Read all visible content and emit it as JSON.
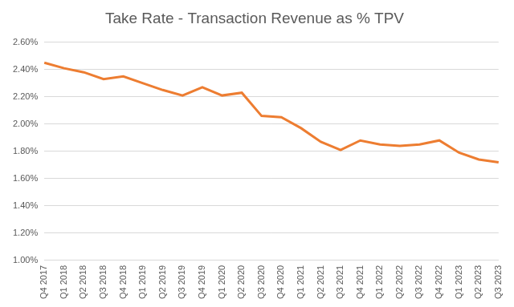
{
  "chart_data": {
    "type": "line",
    "title": "Take Rate - Transaction Revenue as % TPV",
    "categories": [
      "Q4 2017",
      "Q1 2018",
      "Q2 2018",
      "Q3 2018",
      "Q4 2018",
      "Q1 2019",
      "Q2 2019",
      "Q3 2019",
      "Q4 2019",
      "Q1 2020",
      "Q2 2020",
      "Q3 2020",
      "Q4 2020",
      "Q1 2021",
      "Q2 2021",
      "Q3 2021",
      "Q4 2021",
      "Q1 2022",
      "Q2 2022",
      "Q3 2022",
      "Q4 2022",
      "Q1 2023",
      "Q2 2023",
      "Q3 2023"
    ],
    "values": [
      2.45,
      2.41,
      2.38,
      2.33,
      2.35,
      2.3,
      2.25,
      2.21,
      2.27,
      2.21,
      2.23,
      2.06,
      2.05,
      1.97,
      1.87,
      1.81,
      1.88,
      1.85,
      1.84,
      1.85,
      1.88,
      1.79,
      1.74,
      1.72
    ],
    "color": "#ed7d31",
    "ylim": [
      1.0,
      2.6
    ],
    "yticks": [
      {
        "value": 1.0,
        "label": "1.00%"
      },
      {
        "value": 1.2,
        "label": "1.20%"
      },
      {
        "value": 1.4,
        "label": "1.40%"
      },
      {
        "value": 1.6,
        "label": "1.60%"
      },
      {
        "value": 1.8,
        "label": "1.80%"
      },
      {
        "value": 2.0,
        "label": "2.00%"
      },
      {
        "value": 2.2,
        "label": "2.20%"
      },
      {
        "value": 2.4,
        "label": "2.40%"
      },
      {
        "value": 2.6,
        "label": "2.60%"
      }
    ],
    "grid": "y"
  }
}
